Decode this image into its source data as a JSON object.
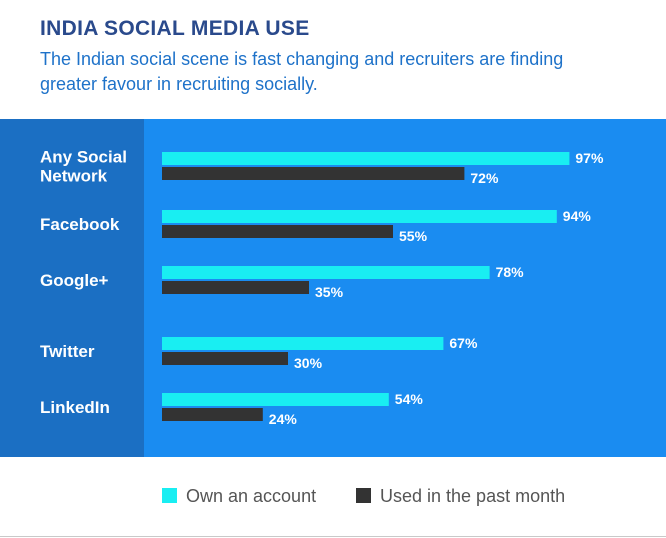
{
  "chart_data": {
    "type": "bar",
    "orientation": "horizontal",
    "title": "INDIA SOCIAL MEDIA USE",
    "subtitle": "The Indian social scene is fast changing and recruiters are finding greater favour in recruiting socially.",
    "categories": [
      [
        "Any Social",
        "Network"
      ],
      [
        "Facebook"
      ],
      [
        "Google+"
      ],
      [
        "Twitter"
      ],
      [
        "LinkedIn"
      ]
    ],
    "series": [
      {
        "name": "Own an account",
        "color": "#19eef2",
        "values": [
          97,
          94,
          78,
          67,
          54
        ]
      },
      {
        "name": "Used in the past month",
        "color": "#333333",
        "values": [
          72,
          55,
          35,
          30,
          24
        ]
      }
    ],
    "value_suffix": "%",
    "xlim": [
      0,
      100
    ],
    "grid": false,
    "legend": "bottom"
  }
}
